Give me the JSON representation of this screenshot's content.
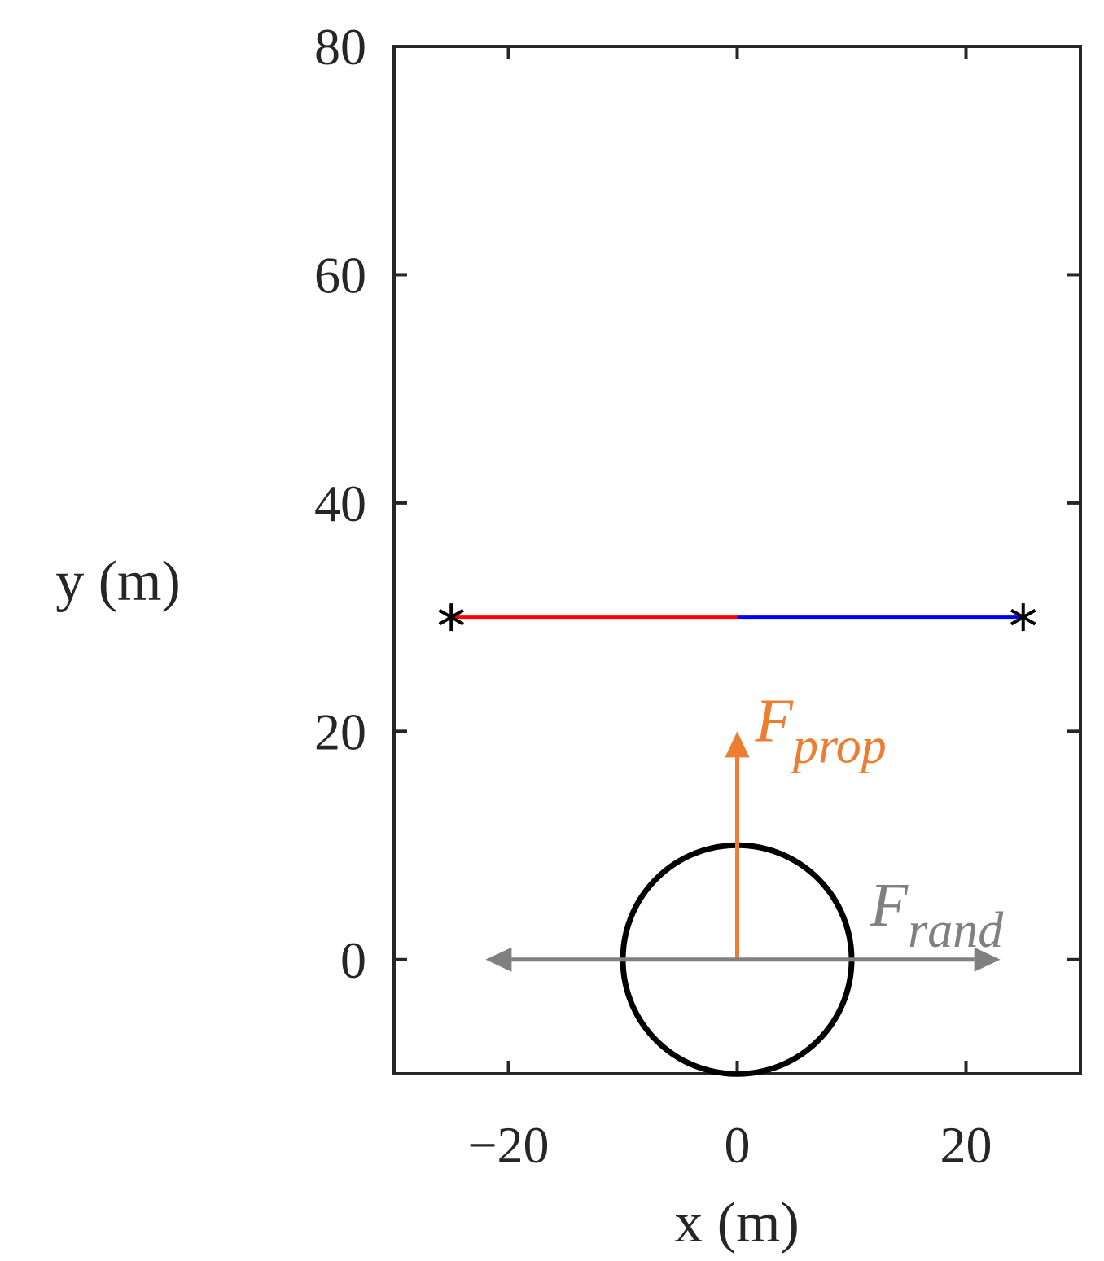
{
  "chart_data": {
    "type": "line",
    "xlabel": "x (m)",
    "ylabel": "y (m)",
    "xlim": [
      -30,
      30
    ],
    "ylim": [
      -10,
      80
    ],
    "xticks": [
      {
        "value": -20,
        "label": "−20"
      },
      0,
      20
    ],
    "yticks": [
      0,
      20,
      40,
      60,
      80
    ],
    "series": [
      {
        "color": "#ff0000",
        "x": [
          -25,
          0
        ],
        "values": [
          30,
          30
        ]
      },
      {
        "color": "#0000ff",
        "x": [
          0,
          25
        ],
        "values": [
          30,
          30
        ]
      },
      {
        "color": "#000000",
        "marker": "asterisk",
        "x": [
          -25,
          25
        ],
        "values": [
          30,
          30
        ]
      }
    ],
    "circle": {
      "center": [
        0,
        0
      ],
      "radius": 10,
      "color": "#000000"
    },
    "arrows": [
      {
        "x": [
          0,
          0
        ],
        "y": [
          0,
          20
        ],
        "color": "#ed7d31",
        "heads": "end",
        "label": {
          "text": "F",
          "subscript": "prop"
        }
      },
      {
        "x": [
          -22,
          23
        ],
        "y": [
          0,
          0
        ],
        "color": "#808080",
        "heads": "both",
        "label": {
          "text": "F",
          "subscript": "rand"
        }
      }
    ]
  }
}
